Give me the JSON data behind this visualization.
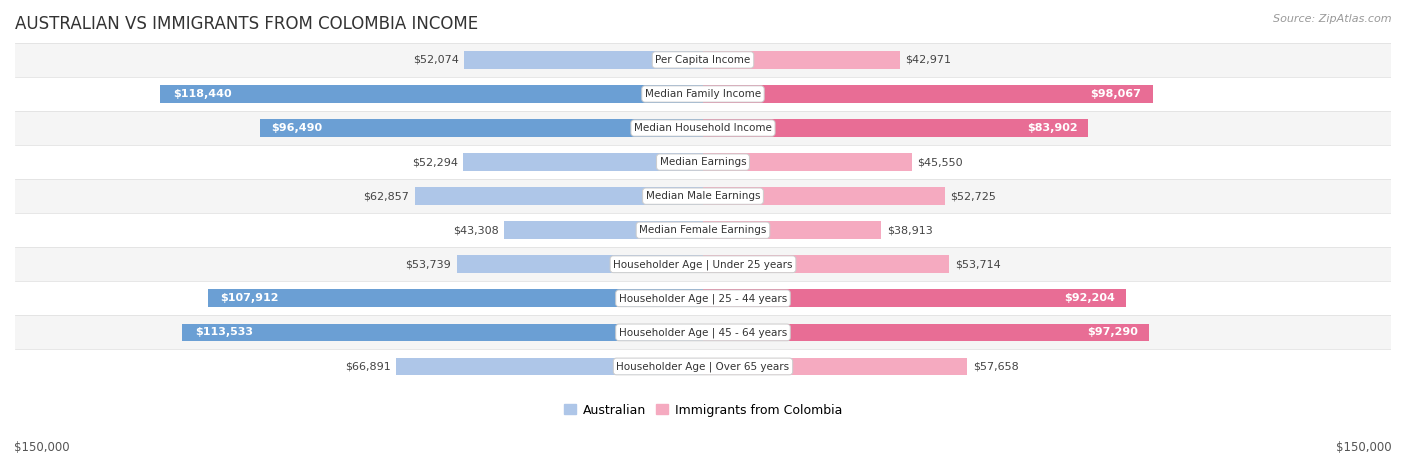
{
  "title": "AUSTRALIAN VS IMMIGRANTS FROM COLOMBIA INCOME",
  "source": "Source: ZipAtlas.com",
  "categories": [
    "Per Capita Income",
    "Median Family Income",
    "Median Household Income",
    "Median Earnings",
    "Median Male Earnings",
    "Median Female Earnings",
    "Householder Age | Under 25 years",
    "Householder Age | 25 - 44 years",
    "Householder Age | 45 - 64 years",
    "Householder Age | Over 65 years"
  ],
  "australian_values": [
    52074,
    118440,
    96490,
    52294,
    62857,
    43308,
    53739,
    107912,
    113533,
    66891
  ],
  "colombia_values": [
    42971,
    98067,
    83902,
    45550,
    52725,
    38913,
    53714,
    92204,
    97290,
    57658
  ],
  "australian_labels": [
    "$52,074",
    "$118,440",
    "$96,490",
    "$52,294",
    "$62,857",
    "$43,308",
    "$53,739",
    "$107,912",
    "$113,533",
    "$66,891"
  ],
  "colombia_labels": [
    "$42,971",
    "$98,067",
    "$83,902",
    "$45,550",
    "$52,725",
    "$38,913",
    "$53,714",
    "$92,204",
    "$97,290",
    "$57,658"
  ],
  "max_value": 150000,
  "australian_color_light": "#aec6e8",
  "australian_color_dark": "#6b9fd4",
  "colombia_color_light": "#f5aac0",
  "colombia_color_dark": "#e86d95",
  "bar_height": 0.52,
  "row_bg_even": "#f5f5f5",
  "row_bg_odd": "#ffffff",
  "row_line_color": "#dddddd",
  "title_fontsize": 12,
  "label_fontsize": 8,
  "tick_fontsize": 8.5,
  "legend_fontsize": 9,
  "category_fontsize": 7.5,
  "xlabel_left": "$150,000",
  "xlabel_right": "$150,000",
  "threshold_for_dark": 75000,
  "source_fontsize": 8
}
